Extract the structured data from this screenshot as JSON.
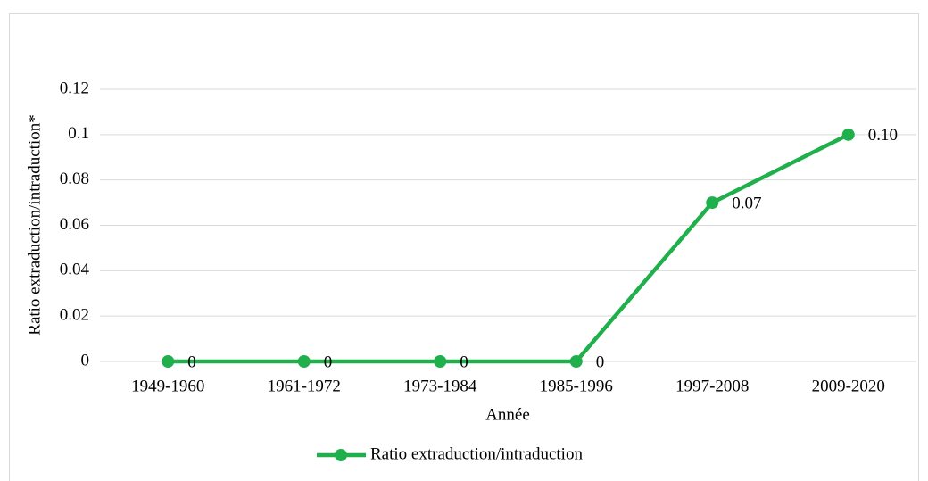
{
  "chart_data": {
    "type": "line",
    "x_label": "Année",
    "y_label": "Ratio extraduction/intraduction*",
    "categories": [
      "1949-1960",
      "1961-1972",
      "1973-1984",
      "1985-1996",
      "1997-2008",
      "2009-2020"
    ],
    "series": [
      {
        "name": "Ratio extraduction/intraduction",
        "color": "#1fb04c",
        "values": [
          0,
          0,
          0,
          0,
          0.07,
          0.1
        ],
        "value_labels": [
          "0",
          "0",
          "0",
          "0",
          "0.07",
          "0.10"
        ]
      }
    ],
    "ylim": [
      0,
      0.12
    ],
    "yticks": [
      0,
      0.02,
      0.04,
      0.06,
      0.08,
      0.1,
      0.12
    ],
    "grid": true,
    "legend": "bottom"
  }
}
